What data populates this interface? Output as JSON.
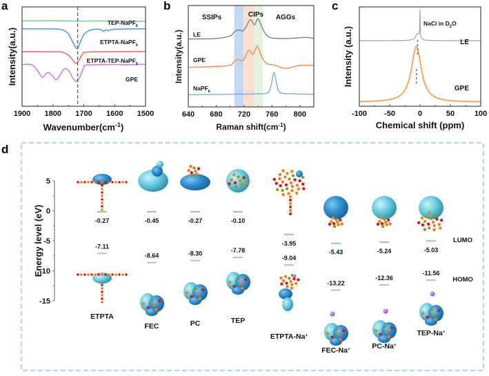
{
  "figure": {
    "panel_letters": [
      "a",
      "b",
      "c",
      "d"
    ]
  },
  "chart_data": [
    {
      "id": "a",
      "type": "line",
      "title": "",
      "xlabel": "Wavenumber(cm",
      "xlabel_sup": "-1",
      "xlabel_end": ")",
      "ylabel": "Intensity(a.u.)",
      "xlim": [
        1900,
        1500
      ],
      "x_ticks": [
        1900,
        1800,
        1700,
        1600,
        1500
      ],
      "x_tick_labels": [
        "1900",
        "1800",
        "1700",
        "1600",
        "1500"
      ],
      "reference_line_x": 1720,
      "grid": false,
      "series": [
        {
          "name": "TEP-NaPF",
          "sub": "6",
          "color": "#7fcf99",
          "baseline": 0.86,
          "points": [
            [
              1900,
              0.86
            ],
            [
              1800,
              0.862
            ],
            [
              1720,
              0.856
            ],
            [
              1650,
              0.858
            ],
            [
              1500,
              0.855
            ]
          ]
        },
        {
          "name": "ETPTA-NaPF",
          "sub": "6",
          "color": "#5b9be6",
          "baseline": 0.78,
          "points": [
            [
              1900,
              0.78
            ],
            [
              1800,
              0.778
            ],
            [
              1770,
              0.77
            ],
            [
              1750,
              0.73
            ],
            [
              1735,
              0.64
            ],
            [
              1722,
              0.58
            ],
            [
              1712,
              0.64
            ],
            [
              1700,
              0.72
            ],
            [
              1680,
              0.765
            ],
            [
              1650,
              0.775
            ],
            [
              1635,
              0.755
            ],
            [
              1628,
              0.77
            ],
            [
              1620,
              0.76
            ],
            [
              1600,
              0.776
            ],
            [
              1500,
              0.78
            ]
          ]
        },
        {
          "name": "ETPTA-TEP-NaPF",
          "sub": "6",
          "color": "#ef6b6b",
          "baseline": 0.55,
          "points": [
            [
              1900,
              0.55
            ],
            [
              1800,
              0.548
            ],
            [
              1770,
              0.545
            ],
            [
              1750,
              0.515
            ],
            [
              1738,
              0.475
            ],
            [
              1728,
              0.435
            ],
            [
              1718,
              0.45
            ],
            [
              1705,
              0.52
            ],
            [
              1690,
              0.545
            ],
            [
              1600,
              0.55
            ],
            [
              1500,
              0.552
            ]
          ]
        },
        {
          "name": "GPE",
          "sub": "",
          "color": "#cc80e6",
          "baseline": 0.42,
          "points": [
            [
              1900,
              0.42
            ],
            [
              1870,
              0.418
            ],
            [
              1850,
              0.36
            ],
            [
              1835,
              0.29
            ],
            [
              1825,
              0.32
            ],
            [
              1815,
              0.34
            ],
            [
              1800,
              0.3
            ],
            [
              1790,
              0.265
            ],
            [
              1780,
              0.3
            ],
            [
              1765,
              0.37
            ],
            [
              1755,
              0.375
            ],
            [
              1745,
              0.34
            ],
            [
              1735,
              0.28
            ],
            [
              1722,
              0.25
            ],
            [
              1712,
              0.3
            ],
            [
              1700,
              0.39
            ],
            [
              1690,
              0.415
            ],
            [
              1600,
              0.42
            ],
            [
              1555,
              0.418
            ],
            [
              1500,
              0.422
            ]
          ]
        }
      ]
    },
    {
      "id": "b",
      "type": "line",
      "title": "",
      "xlabel": "Raman shift(cm",
      "xlabel_sup": "-1",
      "xlabel_end": ")",
      "ylabel": "Intensity(a.u.)",
      "xlim": [
        640,
        820
      ],
      "x_ticks": [
        640,
        680,
        720,
        760,
        800
      ],
      "x_tick_labels": [
        "640",
        "680",
        "720",
        "760",
        "800"
      ],
      "grid": false,
      "regions": [
        {
          "name": "SSIPs",
          "range": [
            706,
            719
          ],
          "color": "#a9c8ee",
          "text_color": "#6a9fdb"
        },
        {
          "name": "CIPs",
          "range": [
            719,
            734
          ],
          "color": "#fad2bd",
          "text_color": "#f08a4b"
        },
        {
          "name": "AGGs",
          "range": [
            734,
            747
          ],
          "color": "#d8ecd0",
          "text_color": "#5aa24a"
        }
      ],
      "series": [
        {
          "name": "LE",
          "sub": "",
          "color": "#808080",
          "points": [
            [
              640,
              0.67
            ],
            [
              680,
              0.675
            ],
            [
              700,
              0.7
            ],
            [
              706,
              0.74
            ],
            [
              712,
              0.76
            ],
            [
              718,
              0.75
            ],
            [
              722,
              0.78
            ],
            [
              729,
              0.86
            ],
            [
              735,
              0.81
            ],
            [
              740,
              0.87
            ],
            [
              746,
              0.78
            ],
            [
              752,
              0.71
            ],
            [
              760,
              0.68
            ],
            [
              780,
              0.675
            ],
            [
              808,
              0.685
            ],
            [
              820,
              0.675
            ]
          ]
        },
        {
          "name": "GPE",
          "sub": "",
          "color": "#f08a4b",
          "points": [
            [
              640,
              0.39
            ],
            [
              680,
              0.4
            ],
            [
              700,
              0.41
            ],
            [
              706,
              0.45
            ],
            [
              711,
              0.47
            ],
            [
              718,
              0.455
            ],
            [
              722,
              0.5
            ],
            [
              727,
              0.56
            ],
            [
              733,
              0.52
            ],
            [
              739,
              0.6
            ],
            [
              745,
              0.5
            ],
            [
              752,
              0.43
            ],
            [
              765,
              0.41
            ],
            [
              780,
              0.38
            ],
            [
              800,
              0.41
            ],
            [
              820,
              0.41
            ]
          ]
        },
        {
          "name": "NaPF",
          "sub": "6",
          "color": "#7fa9dd",
          "points": [
            [
              640,
              0.12
            ],
            [
              700,
              0.125
            ],
            [
              740,
              0.13
            ],
            [
              754,
              0.14
            ],
            [
              759,
              0.22
            ],
            [
              763,
              0.34
            ],
            [
              767,
              0.22
            ],
            [
              772,
              0.14
            ],
            [
              790,
              0.13
            ],
            [
              820,
              0.125
            ]
          ]
        }
      ]
    },
    {
      "id": "c",
      "type": "line",
      "title": "",
      "xlabel": "Chemical shift (ppm)",
      "ylabel": "Intensity (a.u.)",
      "xlim": [
        -100,
        100
      ],
      "x_ticks": [
        -100,
        -50,
        0,
        50,
        100
      ],
      "x_tick_labels": [
        "-100",
        "-50",
        "0",
        "50",
        "100"
      ],
      "grid": false,
      "annotation": {
        "text": "NaCl in D",
        "sub": "2",
        "text_end": "O",
        "x": 0
      },
      "reference_line_x": -4,
      "series": [
        {
          "name": "LE",
          "sub": "",
          "color": "#a6a6a6",
          "baseline": 0.66,
          "peaks": [
            {
              "center": -4,
              "height": 0.07,
              "width": 4
            },
            {
              "center": 0,
              "height": 0.28,
              "width": 0.4
            }
          ]
        },
        {
          "name": "GPE",
          "sub": "",
          "color": "#f5a04f",
          "baseline": 0.04,
          "peaks": [
            {
              "center": -6,
              "height": 0.56,
              "width": 10
            }
          ]
        }
      ]
    },
    {
      "id": "d",
      "type": "scatter",
      "title": "",
      "ylabel": "Energy level (eV)",
      "ylim": [
        -15,
        5
      ],
      "y_ticks": [
        5,
        0,
        -5,
        -10,
        -15
      ],
      "y_tick_labels": [
        "5",
        "0",
        "-5",
        "-10",
        "-15"
      ],
      "grid": false,
      "legend": [
        {
          "name": "LUMO",
          "color": "#8fd18f"
        },
        {
          "name": "HOMO",
          "color": "#c7b3e8"
        }
      ],
      "legend_position": "right",
      "molecules": [
        {
          "name": "ETPTA",
          "sup": "",
          "lumo": -0.27,
          "homo": -7.11,
          "lumo_label": "-0.27",
          "homo_label": "-7.11"
        },
        {
          "name": "FEC",
          "sup": "",
          "lumo": -0.45,
          "homo": -8.64,
          "lumo_label": "-0.45",
          "homo_label": "-8.64"
        },
        {
          "name": "PC",
          "sup": "",
          "lumo": -0.27,
          "homo": -8.3,
          "lumo_label": "-0.27",
          "homo_label": "-8.30"
        },
        {
          "name": "TEP",
          "sup": "",
          "lumo": -0.1,
          "homo": -7.78,
          "lumo_label": "-0.10",
          "homo_label": "-7.78"
        },
        {
          "name": "ETPTA-Na",
          "sup": "+",
          "lumo": -3.95,
          "homo": -9.04,
          "lumo_label": "-3.95",
          "homo_label": "-9.04"
        },
        {
          "name": "FEC-Na",
          "sup": "+",
          "lumo": -5.43,
          "homo": -13.22,
          "lumo_label": "-5.43",
          "homo_label": "-13.22"
        },
        {
          "name": "PC-Na",
          "sup": "+",
          "lumo": -5.24,
          "homo": -12.36,
          "lumo_label": "-5.24",
          "homo_label": "-12.36"
        },
        {
          "name": "TEP-Na",
          "sup": "+",
          "lumo": -5.03,
          "homo": -11.56,
          "lumo_label": "-5.03",
          "homo_label": "-11.56"
        }
      ]
    }
  ]
}
